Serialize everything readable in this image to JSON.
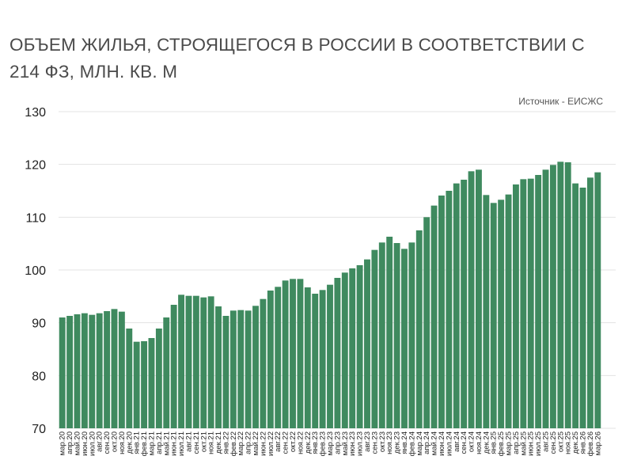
{
  "title": "ОБЪЕМ ЖИЛЬЯ, СТРОЯЩЕГОСЯ В РОССИИ В СООТВЕТСТВИИ С 214 ФЗ, МЛН. КВ. М",
  "source": "Источник - ЕИСЖС",
  "colors": {
    "bar": "#3f8a5f",
    "grid": "#e3e3e3",
    "text": "#4a4a4a"
  },
  "chart_data": {
    "type": "bar",
    "title": "ОБЪЕМ ЖИЛЬЯ, СТРОЯЩЕГОСЯ В РОССИИ В СООТВЕТСТВИИ С 214 ФЗ, МЛН. КВ. М",
    "ylim": [
      70,
      130
    ],
    "yticks": [
      70,
      80,
      90,
      100,
      110,
      120,
      130
    ],
    "grid": true,
    "categories": [
      "мар.20",
      "апр.20",
      "май.20",
      "июн.20",
      "июл.20",
      "авг.20",
      "сен.20",
      "окт.20",
      "ноя.20",
      "дек.20",
      "янв.21",
      "фев.21",
      "мар.21",
      "апр.21",
      "май.21",
      "июн.21",
      "июл.21",
      "авг.21",
      "сен.21",
      "окт.21",
      "ноя.21",
      "дек.21",
      "янв.22",
      "фев.22",
      "мар.22",
      "апр.22",
      "май.22",
      "июн.22",
      "июл.22",
      "авг.22",
      "сен.22",
      "окт.22",
      "ноя.22",
      "дек.22",
      "янв.23",
      "фев.23",
      "мар.23",
      "апр.23",
      "май.23",
      "июн.23",
      "июл.23",
      "авг.23",
      "сен.23",
      "окт.23",
      "ноя.23",
      "дек.23",
      "янв.24",
      "фев.24",
      "мар.24",
      "апр.24",
      "май.24",
      "июн.24",
      "июл.24",
      "авг.24",
      "сен.24",
      "окт.24",
      "ноя.24",
      "дек.24",
      "янв.25",
      "фев.25",
      "мар.25",
      "апр.25",
      "май.25",
      "июн.25",
      "июл.25",
      "авг.25",
      "сен.25",
      "окт.25",
      "ноя.25",
      "дек.25",
      "янв.26",
      "фев.26",
      "мар.26"
    ],
    "values": [
      91.0,
      91.3,
      91.6,
      91.8,
      91.5,
      91.8,
      92.2,
      92.6,
      92.1,
      88.9,
      86.4,
      86.5,
      87.1,
      88.9,
      91.0,
      93.4,
      95.3,
      95.1,
      95.1,
      94.8,
      95.0,
      93.1,
      91.3,
      92.3,
      92.4,
      92.3,
      93.2,
      94.5,
      96.1,
      96.8,
      98.0,
      98.3,
      98.3,
      96.7,
      95.5,
      96.2,
      97.2,
      98.5,
      99.5,
      100.3,
      100.9,
      102.0,
      103.8,
      105.2,
      106.3,
      105.1,
      104.0,
      105.2,
      107.5,
      110.0,
      112.2,
      114.1,
      115.0,
      116.4,
      117.1,
      118.7,
      119.0,
      114.2,
      112.7,
      113.3,
      114.3,
      116.2,
      117.2,
      117.3,
      118.0,
      119.0,
      119.9,
      120.5,
      120.4,
      116.4,
      115.6,
      117.5,
      118.5
    ]
  }
}
